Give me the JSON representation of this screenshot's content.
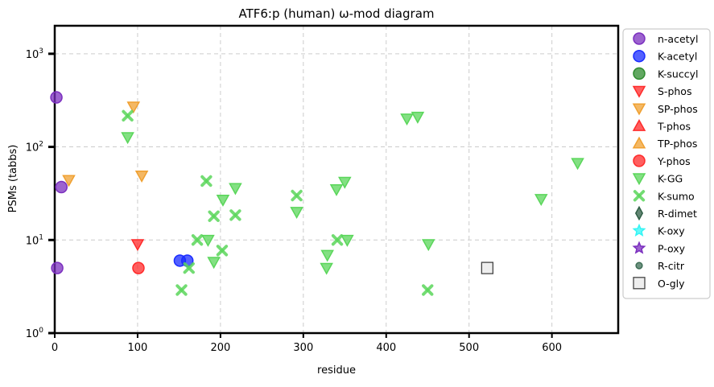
{
  "chart_data": {
    "type": "scatter",
    "title": "ATF6:p (human) ω-mod diagram",
    "xlabel": "residue",
    "ylabel": "PSMs (tabbs)",
    "xlim": [
      0,
      680
    ],
    "ylim": [
      1,
      2000
    ],
    "yscale": "log",
    "grid": true,
    "legend_placement": "outside-right",
    "xticks": [
      "0",
      "100",
      "200",
      "300",
      "400",
      "500",
      "600"
    ],
    "xtick_values": [
      0,
      100,
      200,
      300,
      400,
      500,
      600
    ],
    "yticks": [
      "10^0",
      "10^1",
      "10^2",
      "10^3"
    ],
    "ytick_base": [
      "10",
      "10",
      "10",
      "10"
    ],
    "ytick_exp": [
      "0",
      "1",
      "2",
      "3"
    ],
    "ytick_values": [
      1,
      10,
      100,
      1000
    ],
    "series": [
      {
        "name": "n-acetyl",
        "marker": "circle",
        "color": "#7b2fbf",
        "points": [
          [
            2,
            340
          ],
          [
            8,
            37
          ],
          [
            3,
            5
          ]
        ]
      },
      {
        "name": "K-acetyl",
        "marker": "circle",
        "color": "#1a2cff",
        "points": [
          [
            151,
            6
          ],
          [
            160,
            6
          ]
        ]
      },
      {
        "name": "K-succyl",
        "marker": "circle",
        "color": "#2e8b2e",
        "points": []
      },
      {
        "name": "S-phos",
        "marker": "tri-down",
        "color": "#ff2a2a",
        "points": [
          [
            100,
            9
          ]
        ]
      },
      {
        "name": "SP-phos",
        "marker": "tri-down",
        "color": "#f0a030",
        "points": [
          [
            95,
            270
          ],
          [
            17,
            44
          ],
          [
            105,
            49
          ]
        ]
      },
      {
        "name": "T-phos",
        "marker": "tri-up",
        "color": "#ff2a2a",
        "points": []
      },
      {
        "name": "TP-phos",
        "marker": "tri-up",
        "color": "#f0a030",
        "points": []
      },
      {
        "name": "Y-phos",
        "marker": "circle",
        "color": "#ff2a2a",
        "points": [
          [
            101,
            5
          ]
        ]
      },
      {
        "name": "K-GG",
        "marker": "tri-down",
        "color": "#5ad65a",
        "points": [
          [
            88,
            127
          ],
          [
            425,
            201
          ],
          [
            438,
            210
          ],
          [
            218,
            36
          ],
          [
            203,
            27
          ],
          [
            292,
            20
          ],
          [
            185,
            10
          ],
          [
            192,
            5.8
          ],
          [
            350,
            42
          ],
          [
            340,
            35
          ],
          [
            353,
            10
          ],
          [
            329,
            6.9
          ],
          [
            328,
            5
          ],
          [
            451,
            9
          ],
          [
            587,
            27.5
          ],
          [
            631,
            67
          ]
        ]
      },
      {
        "name": "K-sumo",
        "marker": "x",
        "color": "#5ad65a",
        "points": [
          [
            88,
            216
          ],
          [
            183,
            43
          ],
          [
            192,
            18
          ],
          [
            218,
            18.5
          ],
          [
            292,
            30
          ],
          [
            172,
            10
          ],
          [
            202,
            7.7
          ],
          [
            162,
            5
          ],
          [
            153,
            2.9
          ],
          [
            341,
            10
          ],
          [
            450,
            2.9
          ]
        ]
      },
      {
        "name": "R-dimet",
        "marker": "diamond",
        "color": "#2f5e45",
        "points": []
      },
      {
        "name": "K-oxy",
        "marker": "star",
        "color": "#33f5f5",
        "points": []
      },
      {
        "name": "P-oxy",
        "marker": "star",
        "color": "#7b2fbf",
        "points": []
      },
      {
        "name": "R-citr",
        "marker": "small-circle",
        "color": "#3d6e55",
        "points": []
      },
      {
        "name": "O-gly",
        "marker": "square",
        "color": "#eeeeee",
        "points": [
          [
            522,
            5
          ]
        ]
      }
    ]
  }
}
